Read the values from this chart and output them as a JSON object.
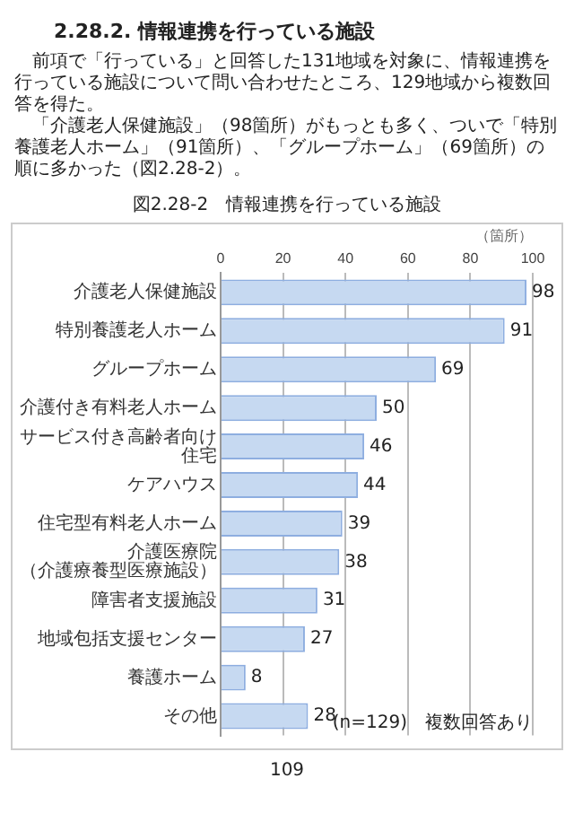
{
  "chart_data": {
    "type": "bar",
    "orientation": "horizontal",
    "title": "図2.28-2　情報連携を行っている施設",
    "xlabel": "（箇所）",
    "categories": [
      "介護老人保健施設",
      "特別養護老人ホーム",
      "グループホーム",
      "介護付き有料老人ホーム",
      "サービス付き高齢者向け住宅",
      "ケアハウス",
      "住宅型有料老人ホーム",
      "介護医療院（介護療養型医療施設）",
      "障害者支援施設",
      "地域包括支援センター",
      "養護ホーム",
      "その他"
    ],
    "values": [
      98,
      91,
      69,
      50,
      46,
      44,
      39,
      38,
      31,
      27,
      8,
      28
    ],
    "color": "#c6d9f1",
    "xlim": [
      0,
      100
    ],
    "xticks": [
      0,
      20,
      40,
      60,
      80,
      100
    ],
    "grid": "x",
    "data_labels": true,
    "legend": false,
    "annotations": [
      "2.28.2. 情報連携を行っている施設",
      "前項で「行っている」と回答した131地域を対象に、情報連携を行っている施設について問い合わせたところ、129地域から複数回答を得た。",
      "「介護老人保健施設」（98箇所）がもっとも多く、ついで「特別養護老人ホーム」（91箇所）、「グループホーム」（69箇所）の順に多かった（図2.28-2）。",
      "(n=129)　複数回答あり",
      "109"
    ]
  }
}
